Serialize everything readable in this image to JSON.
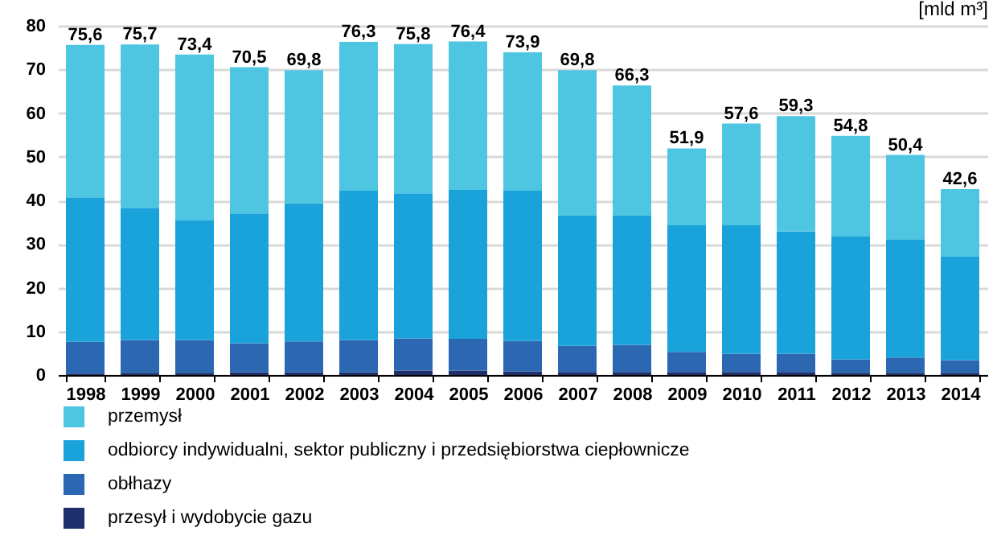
{
  "chart_data": {
    "type": "bar",
    "stacked": true,
    "ylabel": "[mld m³]",
    "categories": [
      "1998",
      "1999",
      "2000",
      "2001",
      "2002",
      "2003",
      "2004",
      "2005",
      "2006",
      "2007",
      "2008",
      "2009",
      "2010",
      "2011",
      "2012",
      "2013",
      "2014"
    ],
    "series": [
      {
        "name": "przesył i wydobycie gazu",
        "color": "#1f2f6b",
        "values": [
          0.3,
          0.5,
          0.5,
          0.6,
          0.6,
          0.6,
          1.0,
          1.0,
          0.8,
          0.7,
          0.7,
          0.7,
          0.7,
          0.7,
          0.5,
          0.5,
          0.5
        ]
      },
      {
        "name": "obłhazy",
        "color": "#2b68b1",
        "values": [
          7.3,
          7.5,
          7.5,
          6.7,
          7.1,
          7.4,
          7.4,
          7.3,
          7.0,
          6.0,
          6.2,
          4.6,
          4.2,
          4.2,
          3.1,
          3.5,
          2.9
        ]
      },
      {
        "name": "odbiorcy indywidualni, sektor publiczny i przedsiębiorstwa ciepłownicze",
        "color": "#1aa3db",
        "values": [
          33.1,
          30.3,
          27.4,
          29.7,
          31.6,
          34.2,
          33.2,
          34.1,
          34.4,
          29.8,
          29.6,
          29.0,
          29.4,
          28.0,
          28.1,
          27.1,
          23.7
        ]
      },
      {
        "name": "przemysł",
        "color": "#4fc6e1",
        "values": [
          34.9,
          37.4,
          38.0,
          33.5,
          30.5,
          34.1,
          34.2,
          34.0,
          31.7,
          33.3,
          29.8,
          17.6,
          23.3,
          26.4,
          23.1,
          19.3,
          15.5
        ]
      }
    ],
    "totals": [
      "75,6",
      "75,7",
      "73,4",
      "70,5",
      "69,8",
      "76,3",
      "75,8",
      "76,4",
      "73,9",
      "69,8",
      "66,3",
      "51,9",
      "57,6",
      "59,3",
      "54,8",
      "50,4",
      "42,6"
    ],
    "ylim": [
      0,
      80
    ],
    "yticks": [
      0,
      10,
      20,
      30,
      40,
      50,
      60,
      70,
      80
    ],
    "grid": "y",
    "legend": "bottom"
  }
}
